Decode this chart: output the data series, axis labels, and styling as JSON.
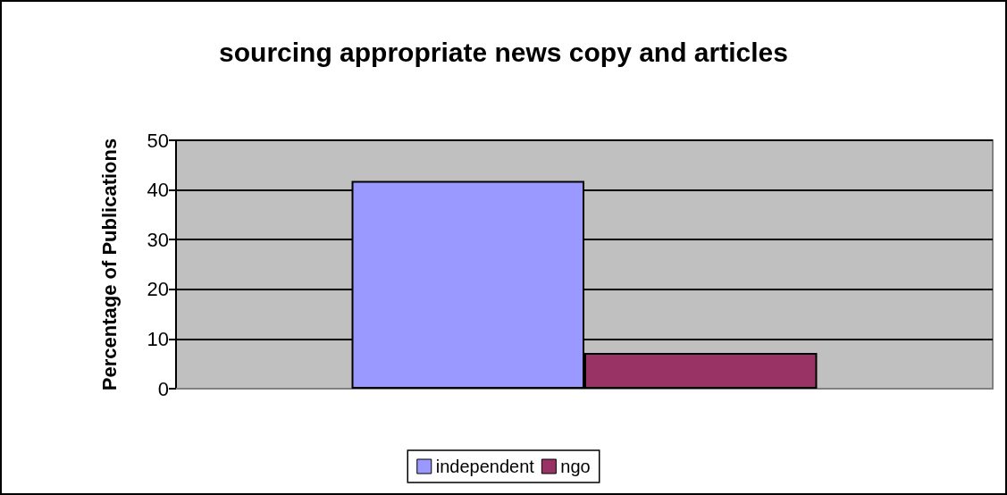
{
  "chart_data": {
    "type": "bar",
    "title": "sourcing appropriate news copy and articles",
    "ylabel": "Percentage of Publications",
    "categories": [
      null
    ],
    "series": [
      {
        "name": "independent",
        "color": "#9999ff",
        "values": [
          41.8
        ]
      },
      {
        "name": "ngo",
        "color": "#993366",
        "values": [
          7.2
        ]
      }
    ],
    "ylim": [
      0,
      50
    ],
    "yticks": [
      0,
      10,
      20,
      30,
      40,
      50
    ],
    "grid": "y",
    "legend": "bottom"
  }
}
